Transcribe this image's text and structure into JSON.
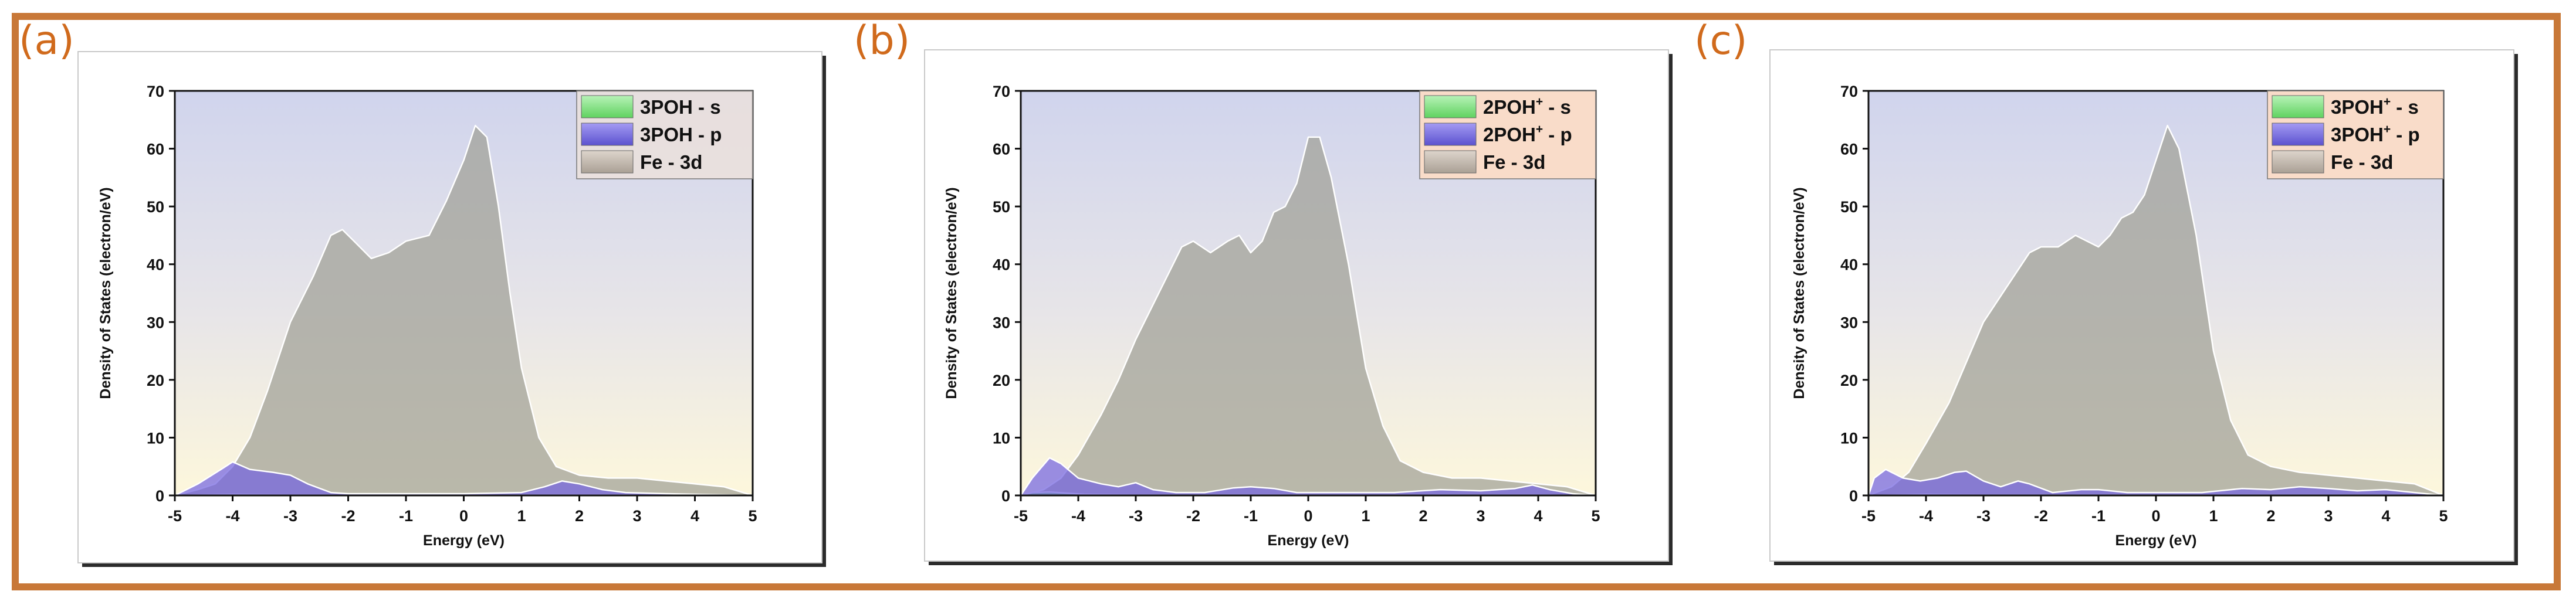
{
  "figure": {
    "panels": [
      {
        "label": "(a)",
        "legend": [
          {
            "name": "3POH",
            "sup": "",
            "suffix": " - s"
          },
          {
            "name": "3POH",
            "sup": "",
            "suffix": " - p"
          },
          {
            "name": "Fe - 3d",
            "sup": "",
            "suffix": ""
          }
        ]
      },
      {
        "label": "(b)",
        "legend": [
          {
            "name": "2POH",
            "sup": "+",
            "suffix": " - s"
          },
          {
            "name": "2POH",
            "sup": "+",
            "suffix": " - p"
          },
          {
            "name": "Fe - 3d",
            "sup": "",
            "suffix": ""
          }
        ]
      },
      {
        "label": "(c)",
        "legend": [
          {
            "name": "3POH",
            "sup": "+",
            "suffix": " - s"
          },
          {
            "name": "3POH",
            "sup": "+",
            "suffix": " - p"
          },
          {
            "name": "Fe - 3d",
            "sup": "",
            "suffix": ""
          }
        ]
      }
    ]
  },
  "colors": {
    "s": "#7be07b",
    "p": "#7f73e6",
    "d": "#bdb3a8",
    "frame": "#c87838",
    "label": "#d06a1c"
  },
  "chart_data": [
    {
      "type": "area",
      "title": "(a)",
      "xlabel": "Energy (eV)",
      "ylabel": "Density of States (electron/eV)",
      "xlim": [
        -5,
        5
      ],
      "ylim": [
        0,
        70
      ],
      "xticks": [
        -5,
        -4,
        -3,
        -2,
        -1,
        0,
        1,
        2,
        3,
        4,
        5
      ],
      "yticks": [
        0,
        10,
        20,
        30,
        40,
        50,
        60,
        70
      ],
      "series": [
        {
          "name": "Fe - 3d",
          "x": [
            -5,
            -4.6,
            -4.3,
            -4.0,
            -3.7,
            -3.4,
            -3.0,
            -2.6,
            -2.3,
            -2.1,
            -1.9,
            -1.6,
            -1.3,
            -1.0,
            -0.6,
            -0.3,
            0.0,
            0.2,
            0.4,
            0.6,
            0.8,
            1.0,
            1.3,
            1.6,
            2.0,
            2.5,
            3.0,
            3.5,
            4.0,
            4.5,
            5.0
          ],
          "values": [
            0,
            1,
            2,
            5,
            10,
            18,
            30,
            38,
            45,
            46,
            44,
            41,
            42,
            44,
            45,
            51,
            58,
            64,
            62,
            50,
            35,
            22,
            10,
            5,
            3.5,
            3,
            3,
            2.5,
            2,
            1.5,
            0
          ]
        },
        {
          "name": "s",
          "x": [
            -5,
            -4,
            -3,
            -2,
            -1,
            0,
            1,
            2,
            3,
            4,
            5
          ],
          "values": [
            0,
            0.2,
            0.1,
            0.1,
            0.1,
            0.1,
            0.1,
            0.1,
            0.1,
            0.1,
            0
          ]
        },
        {
          "name": "p",
          "x": [
            -5,
            -4.6,
            -4.2,
            -4.0,
            -3.7,
            -3.3,
            -3.0,
            -2.7,
            -2.3,
            -2.0,
            -1.0,
            0.0,
            1.0,
            1.4,
            1.7,
            2.0,
            2.4,
            2.8,
            3.5,
            4.0,
            5.0
          ],
          "values": [
            0,
            2,
            4.5,
            5.8,
            4.5,
            4,
            3.5,
            2,
            0.5,
            0.3,
            0.3,
            0.3,
            0.5,
            1.5,
            2.5,
            2,
            1,
            0.5,
            0.3,
            0.2,
            0
          ]
        }
      ]
    },
    {
      "type": "area",
      "title": "(b)",
      "xlabel": "Energy (eV)",
      "ylabel": "Density of States (electron/eV)",
      "xlim": [
        -5,
        5
      ],
      "ylim": [
        0,
        70
      ],
      "xticks": [
        -5,
        -4,
        -3,
        -2,
        -1,
        0,
        1,
        2,
        3,
        4,
        5
      ],
      "yticks": [
        0,
        10,
        20,
        30,
        40,
        50,
        60,
        70
      ],
      "series": [
        {
          "name": "Fe - 3d",
          "x": [
            -5,
            -4.6,
            -4.3,
            -4.0,
            -3.6,
            -3.3,
            -3.0,
            -2.6,
            -2.2,
            -2.0,
            -1.7,
            -1.4,
            -1.2,
            -1.0,
            -0.8,
            -0.6,
            -0.4,
            -0.2,
            0.0,
            0.2,
            0.4,
            0.7,
            1.0,
            1.3,
            1.6,
            2.0,
            2.5,
            3.0,
            3.5,
            4.0,
            4.5,
            5.0
          ],
          "values": [
            0,
            1,
            3,
            7,
            14,
            20,
            27,
            35,
            43,
            44,
            42,
            44,
            45,
            42,
            44,
            49,
            50,
            54,
            62,
            62,
            55,
            40,
            22,
            12,
            6,
            4,
            3,
            3,
            2.5,
            2,
            1.5,
            0
          ]
        },
        {
          "name": "s",
          "x": [
            -5,
            -4.8,
            -4.5,
            -4.2,
            -3.9,
            -3,
            -2,
            -1,
            0,
            1,
            2,
            3,
            4,
            5
          ],
          "values": [
            0,
            0.5,
            0.6,
            0.4,
            0.2,
            0.1,
            0.1,
            0.1,
            0.1,
            0.1,
            0.1,
            0.1,
            0.1,
            0
          ]
        },
        {
          "name": "p",
          "x": [
            -5,
            -4.8,
            -4.5,
            -4.3,
            -4.0,
            -3.6,
            -3.3,
            -3.0,
            -2.7,
            -2.3,
            -1.8,
            -1.3,
            -1.0,
            -0.6,
            -0.2,
            0.5,
            1.5,
            2.3,
            3.0,
            3.6,
            3.9,
            4.2,
            4.6,
            5.0
          ],
          "values": [
            0,
            3,
            6.5,
            5.5,
            3,
            2,
            1.5,
            2.2,
            1,
            0.5,
            0.5,
            1.3,
            1.5,
            1.2,
            0.5,
            0.5,
            0.5,
            1,
            0.8,
            1.2,
            1.8,
            1,
            0.3,
            0
          ]
        }
      ]
    },
    {
      "type": "area",
      "title": "(c)",
      "xlabel": "Energy (eV)",
      "ylabel": "Density of States (electron/eV)",
      "xlim": [
        -5,
        5
      ],
      "ylim": [
        0,
        70
      ],
      "xticks": [
        -5,
        -4,
        -3,
        -2,
        -1,
        0,
        1,
        2,
        3,
        4,
        5
      ],
      "yticks": [
        0,
        10,
        20,
        30,
        40,
        50,
        60,
        70
      ],
      "series": [
        {
          "name": "Fe - 3d",
          "x": [
            -5,
            -4.6,
            -4.3,
            -4.0,
            -3.6,
            -3.3,
            -3.0,
            -2.6,
            -2.2,
            -2.0,
            -1.7,
            -1.4,
            -1.2,
            -1.0,
            -0.8,
            -0.6,
            -0.4,
            -0.2,
            0.0,
            0.2,
            0.4,
            0.7,
            1.0,
            1.3,
            1.6,
            2.0,
            2.5,
            3.0,
            3.5,
            4.0,
            4.5,
            5.0
          ],
          "values": [
            0,
            1.5,
            4,
            9,
            16,
            23,
            30,
            36,
            42,
            43,
            43,
            45,
            44,
            43,
            45,
            48,
            49,
            52,
            58,
            64,
            60,
            45,
            25,
            13,
            7,
            5,
            4,
            3.5,
            3,
            2.5,
            2,
            0
          ]
        },
        {
          "name": "s",
          "x": [
            -5,
            -4,
            -3,
            -2,
            -1,
            0,
            1,
            2,
            3,
            4,
            5
          ],
          "values": [
            0,
            0.2,
            0.1,
            0.1,
            0.1,
            0.1,
            0.1,
            0.1,
            0.1,
            0.1,
            0
          ]
        },
        {
          "name": "p",
          "x": [
            -5,
            -4.9,
            -4.7,
            -4.4,
            -4.1,
            -3.8,
            -3.5,
            -3.3,
            -3.0,
            -2.7,
            -2.4,
            -2.2,
            -1.8,
            -1.3,
            -1.0,
            -0.5,
            0.0,
            0.8,
            1.5,
            2.0,
            2.5,
            3.0,
            3.5,
            4.0,
            4.5,
            5.0
          ],
          "values": [
            0,
            3,
            4.5,
            3,
            2.5,
            3,
            4,
            4.2,
            2.5,
            1.5,
            2.5,
            2,
            0.5,
            1,
            1,
            0.5,
            0.5,
            0.5,
            1.2,
            1,
            1.5,
            1.2,
            0.8,
            1,
            0.5,
            0
          ]
        }
      ]
    }
  ]
}
